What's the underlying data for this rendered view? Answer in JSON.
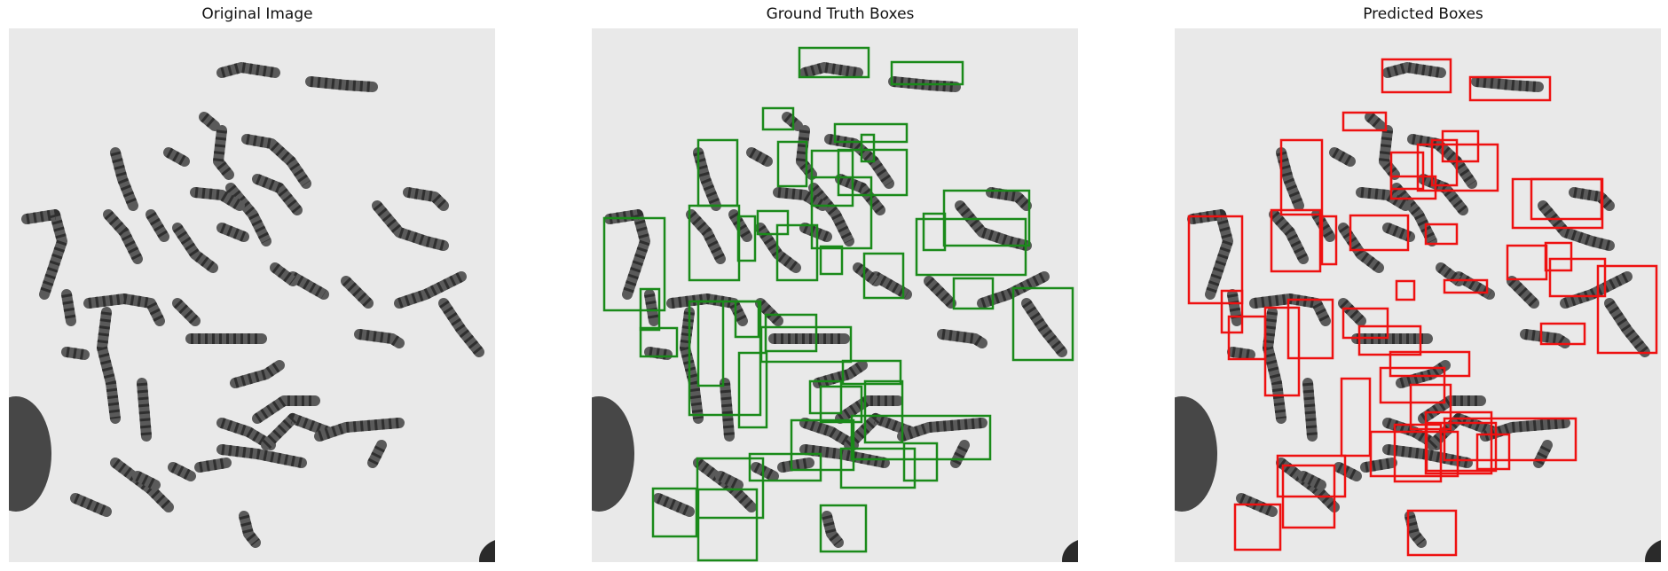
{
  "figure": {
    "panels": [
      {
        "title": "Original Image",
        "box_color": null,
        "box_style": "none"
      },
      {
        "title": "Ground Truth Boxes",
        "box_color": "#1a8a1a",
        "box_style": "outline"
      },
      {
        "title": "Predicted Boxes",
        "box_color": "#ee1111",
        "box_style": "outline"
      }
    ]
  },
  "colors": {
    "background": "#ffffff",
    "image_bg": "#e9e9e9",
    "chromosome": "#5a5a5a",
    "chromosome_band": "#2f2f2f",
    "dark_blob": "#2a2a2a",
    "gt_box": "#1a8a1a",
    "pred_box": "#ee1111"
  }
}
